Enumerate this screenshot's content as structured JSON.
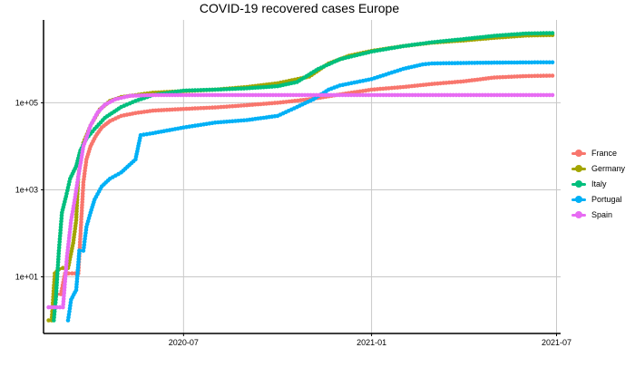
{
  "chart_data": {
    "type": "line",
    "title": "COVID-19 recovered cases Europe",
    "xlabel": "",
    "ylabel": "",
    "x_scale": "date",
    "y_scale": "log",
    "xlim": [
      "2020-02-15",
      "2021-07-05"
    ],
    "ylim": [
      0.5,
      8000000
    ],
    "x_ticks": [
      {
        "value": "2020-07-01",
        "label": "2020-07"
      },
      {
        "value": "2021-01-01",
        "label": "2021-01"
      },
      {
        "value": "2021-07-01",
        "label": "2021-07"
      }
    ],
    "y_ticks": [
      {
        "value": 10,
        "label": "1e+01"
      },
      {
        "value": 1000,
        "label": "1e+03"
      },
      {
        "value": 100000,
        "label": "1e+05"
      }
    ],
    "grid": true,
    "legend_position": "right",
    "series": [
      {
        "name": "France",
        "color": "#F8766D",
        "points": [
          [
            "2020-02-24",
            2
          ],
          [
            "2020-02-28",
            4
          ],
          [
            "2020-03-03",
            4
          ],
          [
            "2020-03-07",
            12
          ],
          [
            "2020-03-14",
            12
          ],
          [
            "2020-03-20",
            12
          ],
          [
            "2020-03-25",
            1500
          ],
          [
            "2020-03-28",
            5000
          ],
          [
            "2020-04-01",
            10000
          ],
          [
            "2020-04-06",
            17000
          ],
          [
            "2020-04-12",
            27000
          ],
          [
            "2020-04-20",
            38000
          ],
          [
            "2020-05-01",
            50000
          ],
          [
            "2020-05-15",
            58000
          ],
          [
            "2020-06-01",
            66000
          ],
          [
            "2020-07-01",
            72000
          ],
          [
            "2020-08-01",
            78000
          ],
          [
            "2020-09-01",
            88000
          ],
          [
            "2020-10-01",
            100000
          ],
          [
            "2020-11-01",
            120000
          ],
          [
            "2020-12-01",
            155000
          ],
          [
            "2021-01-01",
            200000
          ],
          [
            "2021-02-01",
            230000
          ],
          [
            "2021-03-01",
            270000
          ],
          [
            "2021-04-01",
            310000
          ],
          [
            "2021-05-01",
            380000
          ],
          [
            "2021-06-01",
            410000
          ],
          [
            "2021-06-27",
            420000
          ]
        ]
      },
      {
        "name": "Germany",
        "color": "#A3A500",
        "points": [
          [
            "2020-02-20",
            1
          ],
          [
            "2020-02-23",
            1
          ],
          [
            "2020-02-26",
            12
          ],
          [
            "2020-03-01",
            15
          ],
          [
            "2020-03-05",
            16
          ],
          [
            "2020-03-10",
            16
          ],
          [
            "2020-03-15",
            60
          ],
          [
            "2020-03-18",
            200
          ],
          [
            "2020-03-20",
            2000
          ],
          [
            "2020-03-25",
            12000
          ],
          [
            "2020-04-01",
            30000
          ],
          [
            "2020-04-10",
            70000
          ],
          [
            "2020-04-20",
            110000
          ],
          [
            "2020-05-01",
            135000
          ],
          [
            "2020-06-01",
            170000
          ],
          [
            "2020-07-01",
            185000
          ],
          [
            "2020-08-01",
            200000
          ],
          [
            "2020-09-01",
            230000
          ],
          [
            "2020-10-01",
            280000
          ],
          [
            "2020-11-01",
            400000
          ],
          [
            "2020-11-20",
            800000
          ],
          [
            "2020-12-10",
            1200000
          ],
          [
            "2021-01-01",
            1550000
          ],
          [
            "2021-02-01",
            2000000
          ],
          [
            "2021-03-01",
            2400000
          ],
          [
            "2021-04-01",
            2700000
          ],
          [
            "2021-05-01",
            3100000
          ],
          [
            "2021-06-01",
            3500000
          ],
          [
            "2021-06-27",
            3600000
          ]
        ]
      },
      {
        "name": "Italy",
        "color": "#00BF7D",
        "points": [
          [
            "2020-02-25",
            1
          ],
          [
            "2020-02-27",
            3
          ],
          [
            "2020-03-01",
            40
          ],
          [
            "2020-03-04",
            300
          ],
          [
            "2020-03-08",
            700
          ],
          [
            "2020-03-12",
            1800
          ],
          [
            "2020-03-18",
            3500
          ],
          [
            "2020-03-22",
            8000
          ],
          [
            "2020-03-28",
            15000
          ],
          [
            "2020-04-05",
            25000
          ],
          [
            "2020-04-15",
            45000
          ],
          [
            "2020-05-01",
            80000
          ],
          [
            "2020-05-15",
            110000
          ],
          [
            "2020-06-01",
            150000
          ],
          [
            "2020-07-01",
            190000
          ],
          [
            "2020-08-01",
            200000
          ],
          [
            "2020-09-01",
            215000
          ],
          [
            "2020-10-01",
            240000
          ],
          [
            "2020-10-20",
            300000
          ],
          [
            "2020-11-10",
            600000
          ],
          [
            "2020-12-01",
            1000000
          ],
          [
            "2021-01-01",
            1500000
          ],
          [
            "2021-02-01",
            2000000
          ],
          [
            "2021-03-01",
            2450000
          ],
          [
            "2021-04-01",
            2900000
          ],
          [
            "2021-05-01",
            3450000
          ],
          [
            "2021-06-01",
            3900000
          ],
          [
            "2021-06-27",
            4000000
          ]
        ]
      },
      {
        "name": "Portugal",
        "color": "#00B0F6",
        "points": [
          [
            "2020-03-10",
            1
          ],
          [
            "2020-03-13",
            3
          ],
          [
            "2020-03-18",
            5
          ],
          [
            "2020-03-21",
            40
          ],
          [
            "2020-03-25",
            40
          ],
          [
            "2020-03-28",
            140
          ],
          [
            "2020-04-01",
            300
          ],
          [
            "2020-04-05",
            600
          ],
          [
            "2020-04-12",
            1200
          ],
          [
            "2020-04-20",
            1800
          ],
          [
            "2020-05-01",
            2500
          ],
          [
            "2020-05-15",
            5000
          ],
          [
            "2020-05-20",
            18000
          ],
          [
            "2020-06-01",
            20000
          ],
          [
            "2020-07-01",
            27000
          ],
          [
            "2020-08-01",
            35000
          ],
          [
            "2020-09-01",
            40000
          ],
          [
            "2020-10-01",
            50000
          ],
          [
            "2020-10-20",
            80000
          ],
          [
            "2020-11-05",
            120000
          ],
          [
            "2020-11-20",
            200000
          ],
          [
            "2020-12-01",
            250000
          ],
          [
            "2021-01-01",
            350000
          ],
          [
            "2021-02-01",
            600000
          ],
          [
            "2021-02-20",
            760000
          ],
          [
            "2021-03-01",
            800000
          ],
          [
            "2021-04-01",
            820000
          ],
          [
            "2021-05-01",
            835000
          ],
          [
            "2021-06-01",
            845000
          ],
          [
            "2021-06-27",
            850000
          ]
        ]
      },
      {
        "name": "Spain",
        "color": "#E76BF3",
        "points": [
          [
            "2020-02-20",
            2
          ],
          [
            "2020-02-28",
            2
          ],
          [
            "2020-03-05",
            2
          ],
          [
            "2020-03-09",
            30
          ],
          [
            "2020-03-13",
            200
          ],
          [
            "2020-03-16",
            500
          ],
          [
            "2020-03-20",
            2000
          ],
          [
            "2020-03-25",
            10000
          ],
          [
            "2020-04-01",
            30000
          ],
          [
            "2020-04-08",
            60000
          ],
          [
            "2020-04-15",
            90000
          ],
          [
            "2020-04-25",
            120000
          ],
          [
            "2020-05-10",
            145000
          ],
          [
            "2020-06-01",
            150000
          ],
          [
            "2020-07-01",
            150000
          ],
          [
            "2020-09-01",
            150000
          ],
          [
            "2021-01-01",
            150000
          ],
          [
            "2021-06-27",
            150000
          ]
        ]
      }
    ]
  }
}
